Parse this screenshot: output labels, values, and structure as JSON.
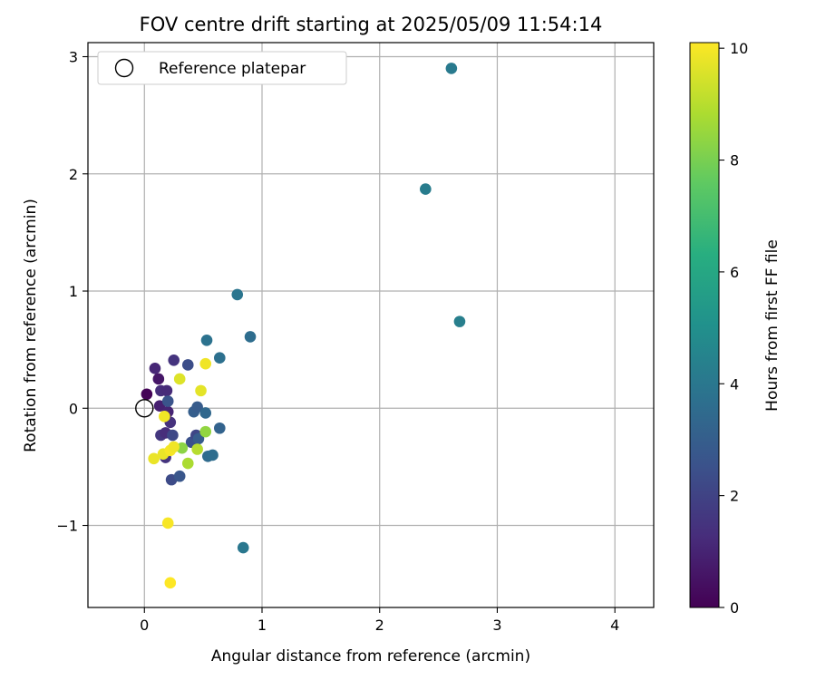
{
  "chart_data": {
    "type": "scatter",
    "title": "FOV centre drift starting at 2025/05/09 11:54:14",
    "xlabel": "Angular distance from reference (arcmin)",
    "ylabel": "Rotation from reference (arcmin)",
    "xlim": [
      -0.48,
      4.33
    ],
    "ylim": [
      -1.7,
      3.12
    ],
    "xticks": [
      0,
      1,
      2,
      3,
      4
    ],
    "yticks": [
      -1,
      0,
      1,
      2,
      3
    ],
    "x_tick_labels": [
      "0",
      "1",
      "2",
      "3",
      "4"
    ],
    "y_tick_labels": [
      "−1",
      "0",
      "1",
      "2",
      "3"
    ],
    "grid": true,
    "legend": {
      "position": "top-left",
      "entries": [
        {
          "label": "Reference platepar",
          "marker": "open-circle"
        }
      ]
    },
    "reference_point": {
      "x": 0,
      "y": 0
    },
    "colorbar": {
      "label": "Hours from first FF file",
      "colormap": "viridis",
      "range": [
        0,
        10.1
      ],
      "ticks": [
        0,
        2,
        4,
        6,
        8,
        10
      ],
      "tick_labels": [
        "0",
        "2",
        "4",
        "6",
        "8",
        "10"
      ]
    },
    "points": [
      {
        "x": 0.02,
        "y": 0.12,
        "hours": 0.1
      },
      {
        "x": 0.12,
        "y": 0.25,
        "hours": 0.6
      },
      {
        "x": 0.09,
        "y": 0.34,
        "hours": 1.1
      },
      {
        "x": 0.14,
        "y": 0.15,
        "hours": 1.3
      },
      {
        "x": 0.19,
        "y": 0.15,
        "hours": 1.2
      },
      {
        "x": 0.13,
        "y": 0.02,
        "hours": 0.9
      },
      {
        "x": 0.2,
        "y": -0.03,
        "hours": 1.0
      },
      {
        "x": 0.22,
        "y": -0.12,
        "hours": 1.4
      },
      {
        "x": 0.14,
        "y": -0.23,
        "hours": 1.6
      },
      {
        "x": 0.18,
        "y": -0.21,
        "hours": 1.3
      },
      {
        "x": 0.18,
        "y": -0.42,
        "hours": 1.5
      },
      {
        "x": 0.25,
        "y": 0.41,
        "hours": 1.5
      },
      {
        "x": 0.37,
        "y": 0.37,
        "hours": 2.4
      },
      {
        "x": 0.2,
        "y": 0.06,
        "hours": 2.6
      },
      {
        "x": 0.24,
        "y": -0.23,
        "hours": 2.2
      },
      {
        "x": 0.23,
        "y": -0.61,
        "hours": 2.3
      },
      {
        "x": 0.3,
        "y": -0.58,
        "hours": 2.7
      },
      {
        "x": 0.4,
        "y": -0.29,
        "hours": 2.5
      },
      {
        "x": 0.44,
        "y": -0.23,
        "hours": 2.1
      },
      {
        "x": 0.46,
        "y": -0.26,
        "hours": 2.9
      },
      {
        "x": 0.42,
        "y": -0.03,
        "hours": 3.0
      },
      {
        "x": 0.45,
        "y": 0.01,
        "hours": 2.9
      },
      {
        "x": 0.52,
        "y": -0.04,
        "hours": 3.4
      },
      {
        "x": 0.54,
        "y": -0.41,
        "hours": 3.5
      },
      {
        "x": 0.58,
        "y": -0.4,
        "hours": 3.6
      },
      {
        "x": 0.64,
        "y": -0.17,
        "hours": 3.2
      },
      {
        "x": 0.53,
        "y": 0.58,
        "hours": 3.8
      },
      {
        "x": 0.64,
        "y": 0.43,
        "hours": 3.7
      },
      {
        "x": 0.79,
        "y": 0.97,
        "hours": 3.9
      },
      {
        "x": 0.9,
        "y": 0.61,
        "hours": 3.6
      },
      {
        "x": 0.84,
        "y": -1.19,
        "hours": 4.0
      },
      {
        "x": 2.39,
        "y": 1.87,
        "hours": 4.2
      },
      {
        "x": 2.61,
        "y": 2.9,
        "hours": 4.1
      },
      {
        "x": 2.68,
        "y": 0.74,
        "hours": 4.3
      },
      {
        "x": 0.32,
        "y": -0.34,
        "hours": 8.3
      },
      {
        "x": 0.37,
        "y": -0.47,
        "hours": 8.8
      },
      {
        "x": 0.45,
        "y": -0.35,
        "hours": 9.0
      },
      {
        "x": 0.52,
        "y": -0.2,
        "hours": 8.4
      },
      {
        "x": 0.3,
        "y": 0.25,
        "hours": 9.6
      },
      {
        "x": 0.48,
        "y": 0.15,
        "hours": 9.7
      },
      {
        "x": 0.52,
        "y": 0.38,
        "hours": 9.9
      },
      {
        "x": 0.17,
        "y": -0.07,
        "hours": 9.9
      },
      {
        "x": 0.08,
        "y": -0.43,
        "hours": 9.8
      },
      {
        "x": 0.16,
        "y": -0.39,
        "hours": 9.8
      },
      {
        "x": 0.22,
        "y": -0.36,
        "hours": 10.0
      },
      {
        "x": 0.25,
        "y": -0.33,
        "hours": 9.9
      },
      {
        "x": 0.2,
        "y": -0.98,
        "hours": 10.0
      },
      {
        "x": 0.22,
        "y": -1.49,
        "hours": 10.1
      }
    ]
  }
}
